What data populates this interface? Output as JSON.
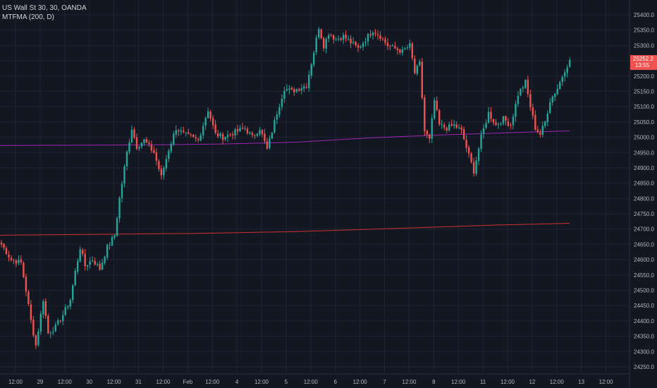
{
  "legend": {
    "symbol": "US Wall St 30, 30, OANDA",
    "indicator": "MTFMA (200, D)"
  },
  "colors": {
    "background": "#131722",
    "grid": "#1f2433",
    "up": "#26a69a",
    "down": "#ef5350",
    "ma_fast": "#9c27b0",
    "ma_slow": "#d32f2f",
    "axis_text": "#b2b5be"
  },
  "chart_data": {
    "type": "candlestick",
    "title": "US Wall St 30, 30, OANDA",
    "ylim": [
      24225,
      25425
    ],
    "y_ticks": [
      24250,
      24300,
      24350,
      24400,
      24450,
      24500,
      24550,
      24600,
      24650,
      24700,
      24750,
      24800,
      24850,
      24900,
      24950,
      25000,
      25050,
      25100,
      25150,
      25200,
      25250,
      25300,
      25350,
      25400
    ],
    "y_tick_labels": [
      "24250.0",
      "24300.0",
      "24350.0",
      "24400.0",
      "24450.0",
      "24500.0",
      "24550.0",
      "24600.0",
      "24650.0",
      "24700.0",
      "24750.0",
      "24800.0",
      "24850.0",
      "24900.0",
      "24950.0",
      "25000.0",
      "25050.0",
      "25100.0",
      "25150.0",
      "25200.0",
      "25250.0",
      "25300.0",
      "25350.0",
      "25400.0"
    ],
    "x_ticks": [
      "12:00",
      "29",
      "12:00",
      "30",
      "12:00",
      "31",
      "12:00",
      "Feb",
      "12:00",
      "4",
      "12:00",
      "5",
      "12:00",
      "6",
      "12:00",
      "7",
      "12:00",
      "8",
      "12:00",
      "11",
      "12:00",
      "12",
      "12:00",
      "13",
      "12:00"
    ],
    "bar_count": 232,
    "current_price": "25252.2",
    "current_time": "13:55",
    "series": [
      {
        "name": "US Wall St 30",
        "anchors": [
          [
            0,
            24650
          ],
          [
            4,
            24600
          ],
          [
            8,
            24590
          ],
          [
            10,
            24500
          ],
          [
            12,
            24400
          ],
          [
            14,
            24320
          ],
          [
            17,
            24470
          ],
          [
            19,
            24360
          ],
          [
            22,
            24380
          ],
          [
            25,
            24420
          ],
          [
            28,
            24470
          ],
          [
            30,
            24560
          ],
          [
            32,
            24640
          ],
          [
            34,
            24580
          ],
          [
            37,
            24600
          ],
          [
            40,
            24570
          ],
          [
            43,
            24640
          ],
          [
            46,
            24680
          ],
          [
            48,
            24800
          ],
          [
            51,
            24950
          ],
          [
            53,
            25030
          ],
          [
            55,
            24970
          ],
          [
            58,
            24990
          ],
          [
            62,
            24950
          ],
          [
            65,
            24870
          ],
          [
            68,
            24960
          ],
          [
            71,
            25030
          ],
          [
            74,
            25010
          ],
          [
            77,
            25000
          ],
          [
            80,
            24990
          ],
          [
            84,
            25090
          ],
          [
            87,
            25010
          ],
          [
            90,
            25000
          ],
          [
            93,
            25010
          ],
          [
            96,
            25020
          ],
          [
            99,
            25030
          ],
          [
            102,
            25000
          ],
          [
            105,
            25030
          ],
          [
            108,
            24960
          ],
          [
            112,
            25080
          ],
          [
            115,
            25160
          ],
          [
            118,
            25150
          ],
          [
            121,
            25160
          ],
          [
            124,
            25170
          ],
          [
            127,
            25280
          ],
          [
            129,
            25360
          ],
          [
            131,
            25300
          ],
          [
            133,
            25340
          ],
          [
            136,
            25320
          ],
          [
            139,
            25330
          ],
          [
            142,
            25310
          ],
          [
            145,
            25290
          ],
          [
            148,
            25320
          ],
          [
            151,
            25350
          ],
          [
            154,
            25330
          ],
          [
            157,
            25300
          ],
          [
            160,
            25290
          ],
          [
            163,
            25280
          ],
          [
            166,
            25300
          ],
          [
            168,
            25210
          ],
          [
            170,
            25240
          ],
          [
            172,
            25020
          ],
          [
            174,
            24990
          ],
          [
            176,
            25120
          ],
          [
            178,
            25040
          ],
          [
            181,
            25030
          ],
          [
            184,
            25040
          ],
          [
            187,
            25020
          ],
          [
            190,
            24940
          ],
          [
            192,
            24890
          ],
          [
            195,
            25000
          ],
          [
            198,
            25080
          ],
          [
            201,
            25040
          ],
          [
            204,
            25060
          ],
          [
            207,
            25040
          ],
          [
            210,
            25140
          ],
          [
            213,
            25180
          ],
          [
            215,
            25100
          ],
          [
            217,
            25030
          ],
          [
            219,
            25010
          ],
          [
            221,
            25050
          ],
          [
            223,
            25120
          ],
          [
            226,
            25160
          ],
          [
            229,
            25220
          ],
          [
            231,
            25252
          ]
        ]
      },
      {
        "name": "MTFMA (200, D) fast",
        "line": [
          [
            0,
            24973
          ],
          [
            30,
            24974
          ],
          [
            60,
            24975
          ],
          [
            90,
            24978
          ],
          [
            120,
            24984
          ],
          [
            150,
            24998
          ],
          [
            180,
            25008
          ],
          [
            231,
            25021
          ]
        ]
      },
      {
        "name": "MTFMA (200, D) slow",
        "line": [
          [
            0,
            24680
          ],
          [
            40,
            24683
          ],
          [
            80,
            24686
          ],
          [
            120,
            24692
          ],
          [
            160,
            24702
          ],
          [
            200,
            24713
          ],
          [
            231,
            24719
          ]
        ]
      }
    ]
  }
}
